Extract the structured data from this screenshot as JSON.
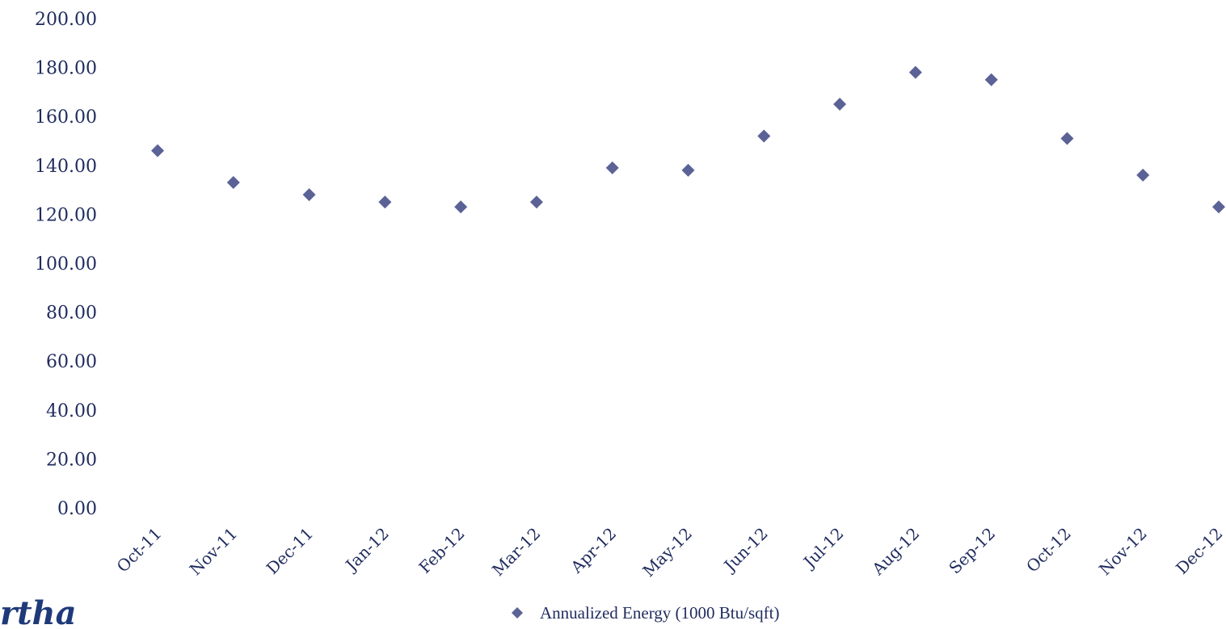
{
  "chart_data": {
    "type": "scatter",
    "categories": [
      "Oct-11",
      "Nov-11",
      "Dec-11",
      "Jan-12",
      "Feb-12",
      "Mar-12",
      "Apr-12",
      "May-12",
      "Jun-12",
      "Jul-12",
      "Aug-12",
      "Sep-12",
      "Oct-12",
      "Nov-12",
      "Dec-12"
    ],
    "series": [
      {
        "name": "Annualized Energy (1000 Btu/sqft)",
        "values": [
          146,
          133,
          128,
          125,
          123,
          125,
          139,
          138,
          152,
          165,
          178,
          175,
          151,
          136,
          123
        ],
        "color": "#5b6296",
        "marker": "diamond"
      }
    ],
    "yticks": [
      "0.00",
      "20.00",
      "40.00",
      "60.00",
      "80.00",
      "100.00",
      "120.00",
      "140.00",
      "160.00",
      "180.00",
      "200.00"
    ],
    "ylim": [
      0,
      200
    ],
    "grid": false,
    "legend_position": "bottom-center",
    "title": "",
    "xlabel": "",
    "ylabel": ""
  },
  "logo": {
    "text": "rtha"
  },
  "colors": {
    "axis_text": "#1f2b5e",
    "marker": "#5b6296",
    "logo": "#1f3a7a"
  }
}
